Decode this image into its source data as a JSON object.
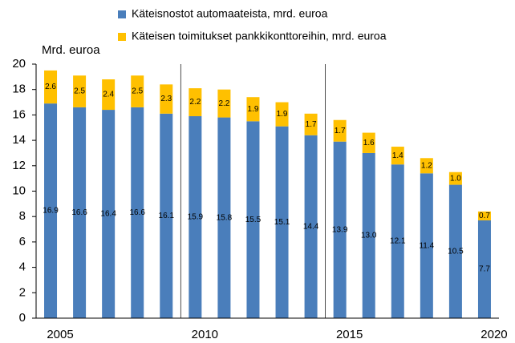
{
  "chart_data": {
    "type": "bar",
    "stacked": true,
    "ylabel": "Mrd. euroa",
    "categories": [
      "2005",
      null,
      null,
      null,
      null,
      "2010",
      null,
      null,
      null,
      null,
      "2015",
      null,
      null,
      null,
      null,
      "2020"
    ],
    "series": [
      {
        "name": "Käteisnostot automaateista, mrd. euroa",
        "color": "#4a7ebb",
        "values": [
          16.9,
          16.6,
          16.4,
          16.6,
          16.1,
          15.9,
          15.8,
          15.5,
          15.1,
          14.4,
          13.9,
          13.0,
          12.1,
          11.4,
          10.5,
          7.7
        ],
        "value_labels": [
          "16.9",
          "16.6",
          "16.4",
          "16.6",
          "16.1",
          "15.9",
          "15.8",
          "15.5",
          "15.1",
          "14.4",
          "13.9",
          "13.0",
          "12.1",
          "11.4",
          "10.5",
          "7.7"
        ]
      },
      {
        "name": "Käteisen toimitukset pankkikonttoreihin, mrd. euroa",
        "color": "#ffc000",
        "values": [
          2.6,
          2.5,
          2.4,
          2.5,
          2.3,
          2.2,
          2.2,
          1.9,
          1.9,
          1.7,
          1.7,
          1.6,
          1.4,
          1.2,
          1.0,
          0.7
        ],
        "value_labels": [
          "2.6",
          "2.5",
          "2.4",
          "2.5",
          "2.3",
          "2.2",
          "2.2",
          "1.9",
          "1.9",
          "1.7",
          "1.7",
          "1.6",
          "1.4",
          "1.2",
          "1.0",
          "0.7"
        ]
      }
    ],
    "ylim": [
      0,
      20
    ],
    "yticks": [
      0,
      2,
      4,
      6,
      8,
      10,
      12,
      14,
      16,
      18,
      20
    ],
    "legend": "top"
  }
}
